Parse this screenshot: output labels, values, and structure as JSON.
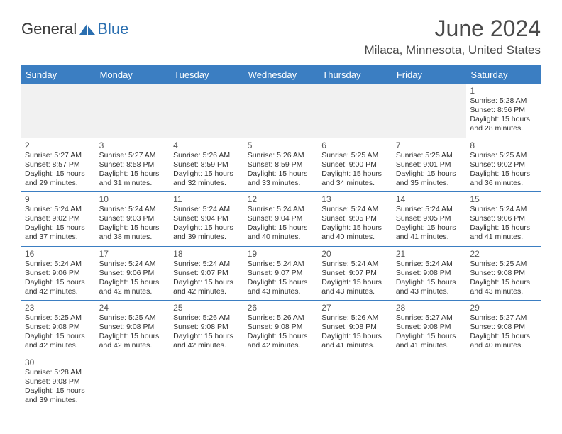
{
  "logo": {
    "text1": "General",
    "text2": "Blue"
  },
  "title": "June 2024",
  "location": "Milaca, Minnesota, United States",
  "colors": {
    "header_bg": "#3b7ec2",
    "header_text": "#ffffff",
    "border": "#3b7ec2",
    "empty_row_bg": "#f1f1f1",
    "text": "#333333",
    "title_text": "#4a4a4a"
  },
  "day_names": [
    "Sunday",
    "Monday",
    "Tuesday",
    "Wednesday",
    "Thursday",
    "Friday",
    "Saturday"
  ],
  "weeks": [
    [
      null,
      null,
      null,
      null,
      null,
      null,
      {
        "n": "1",
        "sr": "Sunrise: 5:28 AM",
        "ss": "Sunset: 8:56 PM",
        "d1": "Daylight: 15 hours",
        "d2": "and 28 minutes."
      }
    ],
    [
      {
        "n": "2",
        "sr": "Sunrise: 5:27 AM",
        "ss": "Sunset: 8:57 PM",
        "d1": "Daylight: 15 hours",
        "d2": "and 29 minutes."
      },
      {
        "n": "3",
        "sr": "Sunrise: 5:27 AM",
        "ss": "Sunset: 8:58 PM",
        "d1": "Daylight: 15 hours",
        "d2": "and 31 minutes."
      },
      {
        "n": "4",
        "sr": "Sunrise: 5:26 AM",
        "ss": "Sunset: 8:59 PM",
        "d1": "Daylight: 15 hours",
        "d2": "and 32 minutes."
      },
      {
        "n": "5",
        "sr": "Sunrise: 5:26 AM",
        "ss": "Sunset: 8:59 PM",
        "d1": "Daylight: 15 hours",
        "d2": "and 33 minutes."
      },
      {
        "n": "6",
        "sr": "Sunrise: 5:25 AM",
        "ss": "Sunset: 9:00 PM",
        "d1": "Daylight: 15 hours",
        "d2": "and 34 minutes."
      },
      {
        "n": "7",
        "sr": "Sunrise: 5:25 AM",
        "ss": "Sunset: 9:01 PM",
        "d1": "Daylight: 15 hours",
        "d2": "and 35 minutes."
      },
      {
        "n": "8",
        "sr": "Sunrise: 5:25 AM",
        "ss": "Sunset: 9:02 PM",
        "d1": "Daylight: 15 hours",
        "d2": "and 36 minutes."
      }
    ],
    [
      {
        "n": "9",
        "sr": "Sunrise: 5:24 AM",
        "ss": "Sunset: 9:02 PM",
        "d1": "Daylight: 15 hours",
        "d2": "and 37 minutes."
      },
      {
        "n": "10",
        "sr": "Sunrise: 5:24 AM",
        "ss": "Sunset: 9:03 PM",
        "d1": "Daylight: 15 hours",
        "d2": "and 38 minutes."
      },
      {
        "n": "11",
        "sr": "Sunrise: 5:24 AM",
        "ss": "Sunset: 9:04 PM",
        "d1": "Daylight: 15 hours",
        "d2": "and 39 minutes."
      },
      {
        "n": "12",
        "sr": "Sunrise: 5:24 AM",
        "ss": "Sunset: 9:04 PM",
        "d1": "Daylight: 15 hours",
        "d2": "and 40 minutes."
      },
      {
        "n": "13",
        "sr": "Sunrise: 5:24 AM",
        "ss": "Sunset: 9:05 PM",
        "d1": "Daylight: 15 hours",
        "d2": "and 40 minutes."
      },
      {
        "n": "14",
        "sr": "Sunrise: 5:24 AM",
        "ss": "Sunset: 9:05 PM",
        "d1": "Daylight: 15 hours",
        "d2": "and 41 minutes."
      },
      {
        "n": "15",
        "sr": "Sunrise: 5:24 AM",
        "ss": "Sunset: 9:06 PM",
        "d1": "Daylight: 15 hours",
        "d2": "and 41 minutes."
      }
    ],
    [
      {
        "n": "16",
        "sr": "Sunrise: 5:24 AM",
        "ss": "Sunset: 9:06 PM",
        "d1": "Daylight: 15 hours",
        "d2": "and 42 minutes."
      },
      {
        "n": "17",
        "sr": "Sunrise: 5:24 AM",
        "ss": "Sunset: 9:06 PM",
        "d1": "Daylight: 15 hours",
        "d2": "and 42 minutes."
      },
      {
        "n": "18",
        "sr": "Sunrise: 5:24 AM",
        "ss": "Sunset: 9:07 PM",
        "d1": "Daylight: 15 hours",
        "d2": "and 42 minutes."
      },
      {
        "n": "19",
        "sr": "Sunrise: 5:24 AM",
        "ss": "Sunset: 9:07 PM",
        "d1": "Daylight: 15 hours",
        "d2": "and 43 minutes."
      },
      {
        "n": "20",
        "sr": "Sunrise: 5:24 AM",
        "ss": "Sunset: 9:07 PM",
        "d1": "Daylight: 15 hours",
        "d2": "and 43 minutes."
      },
      {
        "n": "21",
        "sr": "Sunrise: 5:24 AM",
        "ss": "Sunset: 9:08 PM",
        "d1": "Daylight: 15 hours",
        "d2": "and 43 minutes."
      },
      {
        "n": "22",
        "sr": "Sunrise: 5:25 AM",
        "ss": "Sunset: 9:08 PM",
        "d1": "Daylight: 15 hours",
        "d2": "and 43 minutes."
      }
    ],
    [
      {
        "n": "23",
        "sr": "Sunrise: 5:25 AM",
        "ss": "Sunset: 9:08 PM",
        "d1": "Daylight: 15 hours",
        "d2": "and 42 minutes."
      },
      {
        "n": "24",
        "sr": "Sunrise: 5:25 AM",
        "ss": "Sunset: 9:08 PM",
        "d1": "Daylight: 15 hours",
        "d2": "and 42 minutes."
      },
      {
        "n": "25",
        "sr": "Sunrise: 5:26 AM",
        "ss": "Sunset: 9:08 PM",
        "d1": "Daylight: 15 hours",
        "d2": "and 42 minutes."
      },
      {
        "n": "26",
        "sr": "Sunrise: 5:26 AM",
        "ss": "Sunset: 9:08 PM",
        "d1": "Daylight: 15 hours",
        "d2": "and 42 minutes."
      },
      {
        "n": "27",
        "sr": "Sunrise: 5:26 AM",
        "ss": "Sunset: 9:08 PM",
        "d1": "Daylight: 15 hours",
        "d2": "and 41 minutes."
      },
      {
        "n": "28",
        "sr": "Sunrise: 5:27 AM",
        "ss": "Sunset: 9:08 PM",
        "d1": "Daylight: 15 hours",
        "d2": "and 41 minutes."
      },
      {
        "n": "29",
        "sr": "Sunrise: 5:27 AM",
        "ss": "Sunset: 9:08 PM",
        "d1": "Daylight: 15 hours",
        "d2": "and 40 minutes."
      }
    ],
    [
      {
        "n": "30",
        "sr": "Sunrise: 5:28 AM",
        "ss": "Sunset: 9:08 PM",
        "d1": "Daylight: 15 hours",
        "d2": "and 39 minutes."
      },
      null,
      null,
      null,
      null,
      null,
      null
    ]
  ]
}
